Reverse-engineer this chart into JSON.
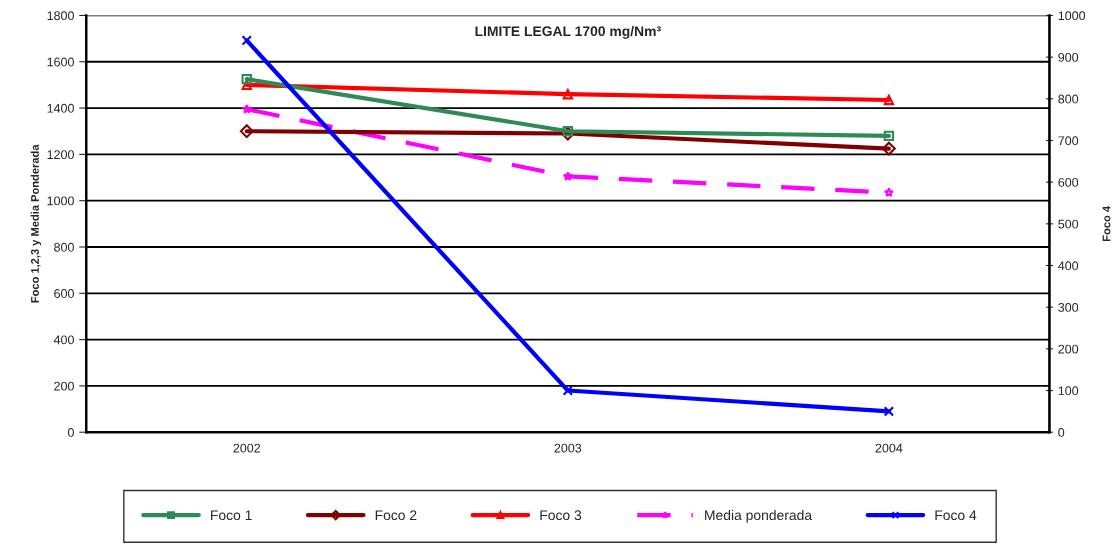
{
  "chart_data": {
    "type": "line",
    "title": "LIMITE LEGAL 1700 mg/Nm³",
    "ylabel": "Foco 1,2,3 y Media Ponderada",
    "y2label": "Foco 4",
    "categories": [
      "2002",
      "2003",
      "2004"
    ],
    "series": [
      {
        "name": "Foco 1",
        "color": "#2e8b57",
        "values": [
          1525,
          1300,
          1280
        ],
        "marker": "square",
        "line_style": "solid"
      },
      {
        "name": "Foco 2",
        "color": "#800000",
        "values": [
          1300,
          1290,
          1225
        ],
        "marker": "diamond",
        "line_style": "solid"
      },
      {
        "name": "Foco 3",
        "color": "#ff0000",
        "values": [
          1500,
          1460,
          1435
        ],
        "marker": "triangle",
        "line_style": "solid"
      },
      {
        "name": "Media ponderada",
        "color": "#ff00ff",
        "values": [
          1395,
          1105,
          1035
        ],
        "marker": "star",
        "line_style": "dashed"
      },
      {
        "name": "Foco 4",
        "color": "#0000ff",
        "values": [
          940,
          100,
          50
        ],
        "marker": "cross",
        "line_style": "solid",
        "axis": "y2"
      }
    ],
    "ylim": [
      0,
      1800
    ],
    "yticks": [
      0,
      200,
      400,
      600,
      800,
      1000,
      1200,
      1400,
      1600,
      1800
    ],
    "y2lim": [
      0,
      1000
    ],
    "y2ticks": [
      0,
      100,
      200,
      300,
      400,
      500,
      600,
      700,
      800,
      900,
      1000
    ],
    "grid": "y",
    "legend": "bottom"
  }
}
